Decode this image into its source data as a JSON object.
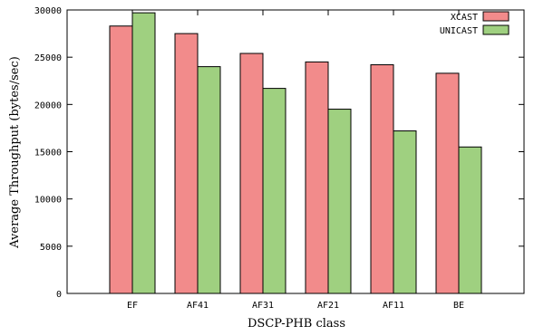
{
  "chart_data": {
    "type": "bar",
    "xlabel": "DSCP-PHB class",
    "ylabel": "Average Throughput (bytes/sec)",
    "categories": [
      "EF",
      "AF41",
      "AF31",
      "AF21",
      "AF11",
      "BE"
    ],
    "series": [
      {
        "name": "XCAST",
        "color": "#f28b8b",
        "values": [
          28300,
          27500,
          25400,
          24500,
          24200,
          23300
        ]
      },
      {
        "name": "UNICAST",
        "color": "#9fd080",
        "values": [
          29700,
          24000,
          21700,
          19500,
          17200,
          15500
        ]
      }
    ],
    "ylim": [
      0,
      30000
    ],
    "yticks": [
      0,
      5000,
      10000,
      15000,
      20000,
      25000,
      30000
    ],
    "grid": false,
    "legend_position": "top-right"
  }
}
